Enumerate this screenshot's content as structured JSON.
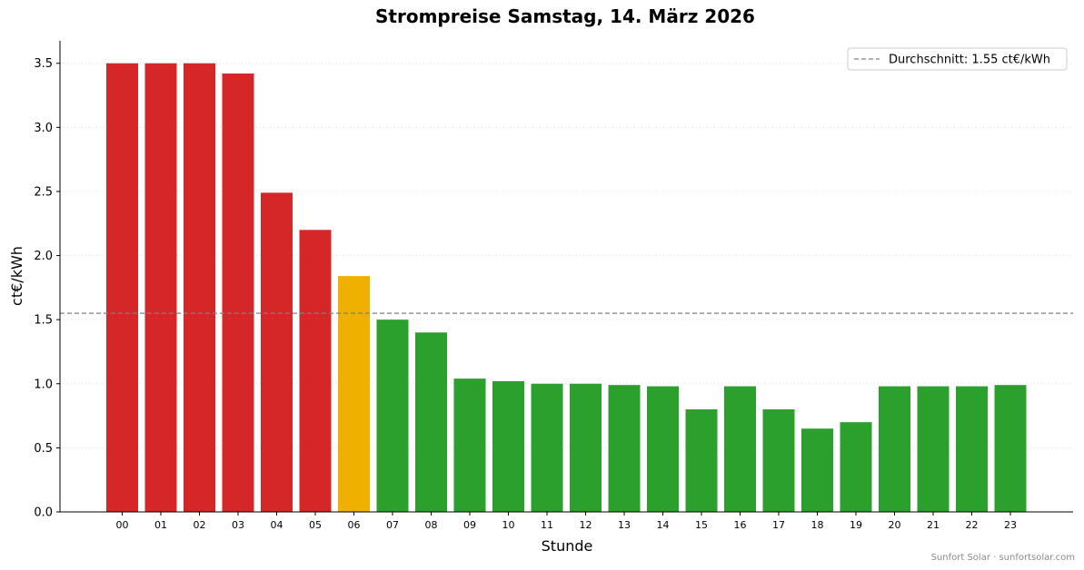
{
  "chart_data": {
    "type": "bar",
    "title": "Strompreise Samstag, 14. März 2026",
    "xlabel": "Stunde",
    "ylabel": "ct€/kWh",
    "categories": [
      "00",
      "01",
      "02",
      "03",
      "04",
      "05",
      "06",
      "07",
      "08",
      "09",
      "10",
      "11",
      "12",
      "13",
      "14",
      "15",
      "16",
      "17",
      "18",
      "19",
      "20",
      "21",
      "22",
      "23"
    ],
    "values": [
      3.5,
      3.5,
      3.5,
      3.42,
      2.49,
      2.2,
      1.84,
      1.5,
      1.4,
      1.04,
      1.02,
      1.0,
      1.0,
      0.99,
      0.98,
      0.8,
      0.98,
      0.8,
      0.65,
      0.7,
      0.98,
      0.98,
      0.98,
      0.99
    ],
    "bar_colors": [
      "#d62728",
      "#d62728",
      "#d62728",
      "#d62728",
      "#d62728",
      "#d62728",
      "#f0b000",
      "#2ca02c",
      "#2ca02c",
      "#2ca02c",
      "#2ca02c",
      "#2ca02c",
      "#2ca02c",
      "#2ca02c",
      "#2ca02c",
      "#2ca02c",
      "#2ca02c",
      "#2ca02c",
      "#2ca02c",
      "#2ca02c",
      "#2ca02c",
      "#2ca02c",
      "#2ca02c",
      "#2ca02c"
    ],
    "ylim": [
      0,
      3.675
    ],
    "yticks": [
      "0.0",
      "0.5",
      "1.0",
      "1.5",
      "2.0",
      "2.5",
      "3.0",
      "3.5"
    ],
    "grid": "horizontal dotted",
    "reference_line": {
      "value": 1.55,
      "label": "Durchschnitt: 1.55 ct€/kWh",
      "color": "#808080",
      "style": "dashed"
    },
    "legend_position": "top-right"
  },
  "footer": "Sunfort Solar · sunfortsolar.com"
}
